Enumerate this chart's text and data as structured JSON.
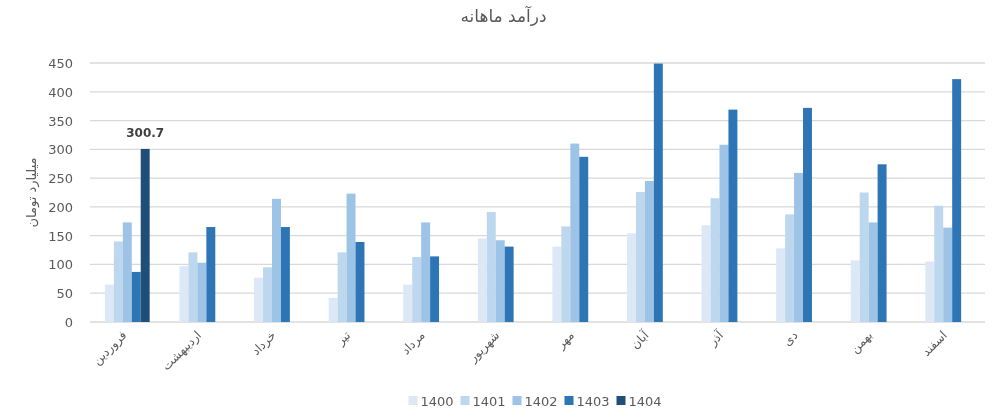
{
  "chart_data": {
    "type": "bar",
    "title": "درآمد ماهانه",
    "ylabel": "میلیارد تومان",
    "categories": [
      "فروردین",
      "اردیبهشت",
      "خرداد",
      "تیر",
      "مرداد",
      "شهریور",
      "مهر",
      "آبان",
      "آذر",
      "دی",
      "بهمن",
      "اسفند"
    ],
    "series": [
      {
        "name": "1400",
        "color": "#dde8f6",
        "values": [
          65,
          97,
          77,
          42,
          65,
          145,
          131,
          154,
          168,
          128,
          107,
          105
        ]
      },
      {
        "name": "1401",
        "color": "#bdd7ee",
        "values": [
          140,
          121,
          95,
          121,
          113,
          191,
          166,
          226,
          215,
          187,
          225,
          202
        ]
      },
      {
        "name": "1402",
        "color": "#9dc3e6",
        "values": [
          173,
          103,
          214,
          223,
          173,
          142,
          310,
          245,
          308,
          259,
          173,
          164
        ]
      },
      {
        "name": "1403",
        "color": "#2e75b6",
        "values": [
          87,
          165,
          165,
          139,
          114,
          131,
          287,
          449,
          369,
          372,
          274,
          422
        ]
      },
      {
        "name": "1404",
        "color": "#1f4e79",
        "values": [
          300.7,
          null,
          null,
          null,
          null,
          null,
          null,
          null,
          null,
          null,
          null,
          null
        ],
        "value_labels": [
          "300.7",
          null,
          null,
          null,
          null,
          null,
          null,
          null,
          null,
          null,
          null,
          null
        ]
      }
    ],
    "ylim": [
      0,
      450
    ],
    "yticks": [
      0,
      50,
      100,
      150,
      200,
      250,
      300,
      350,
      400,
      450
    ],
    "grid": "y",
    "legend": "bottom"
  }
}
